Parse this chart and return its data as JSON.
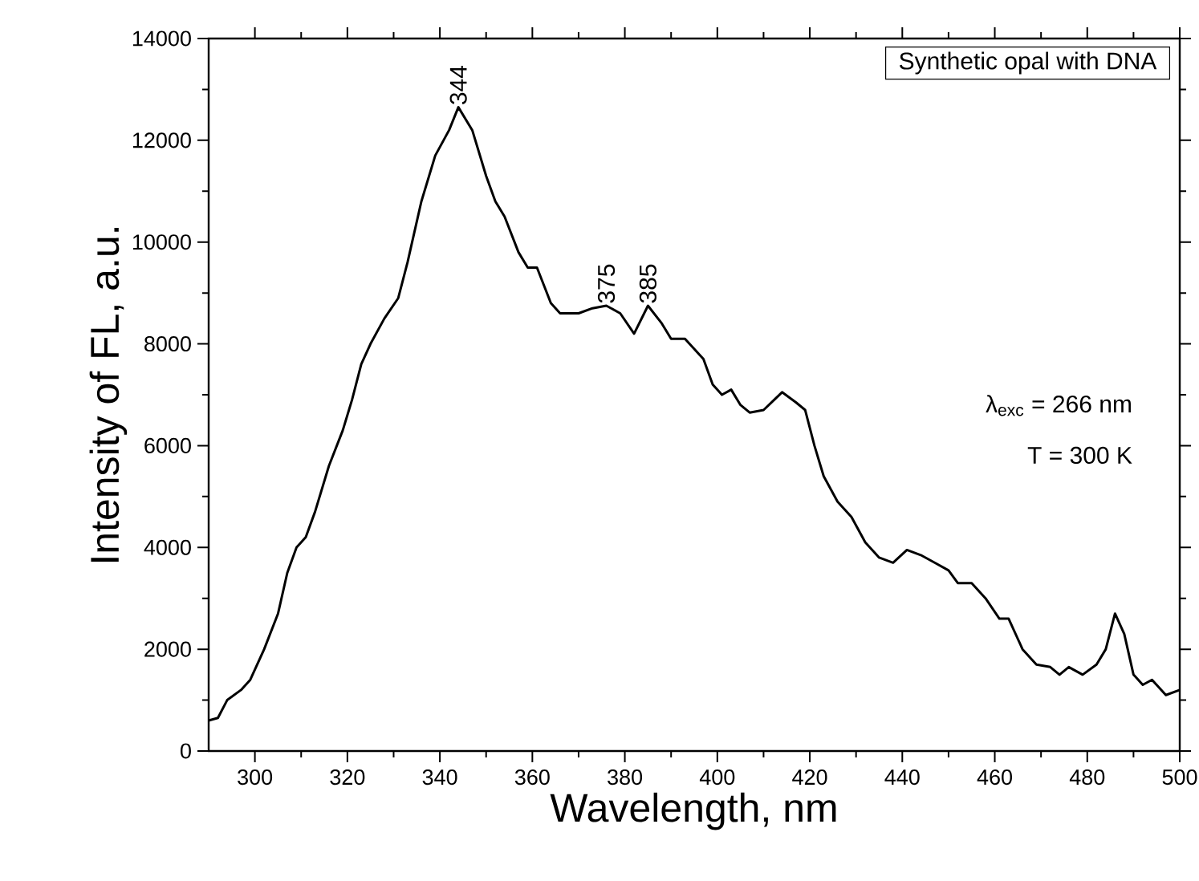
{
  "chart_data": {
    "type": "line",
    "xlabel": "Wavelength, nm",
    "ylabel": "Intensity of FL, a.u.",
    "xlim": [
      290,
      500
    ],
    "ylim": [
      0,
      14000
    ],
    "xticks": [
      300,
      320,
      340,
      360,
      380,
      400,
      420,
      440,
      460,
      480,
      500
    ],
    "yticks": [
      0,
      2000,
      4000,
      6000,
      8000,
      10000,
      12000,
      14000
    ],
    "grid": false,
    "marker": "none",
    "line_style": "solid",
    "annotations": [
      "Synthetic opal with DNA",
      "λ$_{exc}$ = 266 nm",
      "T = 300 K",
      {
        "text": "344",
        "x": 344,
        "y": 12650
      },
      {
        "text": "375",
        "x": 376,
        "y": 8750
      },
      {
        "text": "385",
        "x": 385,
        "y": 8750
      }
    ],
    "series": [
      {
        "color": "#000000",
        "x": [
          290,
          292,
          294,
          297,
          299,
          302,
          305,
          307,
          309,
          311,
          313,
          316,
          319,
          321,
          323,
          325,
          328,
          331,
          333,
          336,
          339,
          342,
          344,
          347,
          350,
          352,
          354,
          357,
          359,
          361,
          364,
          366,
          370,
          373,
          376,
          379,
          382,
          385,
          388,
          390,
          393,
          397,
          399,
          401,
          403,
          405,
          407,
          410,
          414,
          417,
          419,
          421,
          423,
          426,
          429,
          432,
          435,
          438,
          441,
          444,
          447,
          450,
          452,
          455,
          458,
          461,
          463,
          466,
          469,
          472,
          474,
          476,
          479,
          482,
          484,
          486,
          488,
          490,
          492,
          494,
          497,
          500
        ],
        "values": [
          600,
          650,
          1000,
          1200,
          1400,
          2000,
          2700,
          3500,
          4000,
          4200,
          4700,
          5600,
          6300,
          6900,
          7600,
          8000,
          8500,
          8900,
          9600,
          10800,
          11700,
          12200,
          12650,
          12200,
          11300,
          10800,
          10500,
          9800,
          9500,
          9500,
          8800,
          8600,
          8600,
          8700,
          8750,
          8600,
          8200,
          8750,
          8400,
          8100,
          8100,
          7700,
          7200,
          7000,
          7100,
          6800,
          6650,
          6700,
          7050,
          6850,
          6700,
          6000,
          5400,
          4900,
          4600,
          4100,
          3800,
          3700,
          3950,
          3850,
          3700,
          3550,
          3300,
          3300,
          3000,
          2600,
          2600,
          2000,
          1700,
          1650,
          1500,
          1650,
          1500,
          1700,
          2000,
          2700,
          2300,
          1500,
          1300,
          1400,
          1100,
          1200
        ]
      }
    ]
  }
}
